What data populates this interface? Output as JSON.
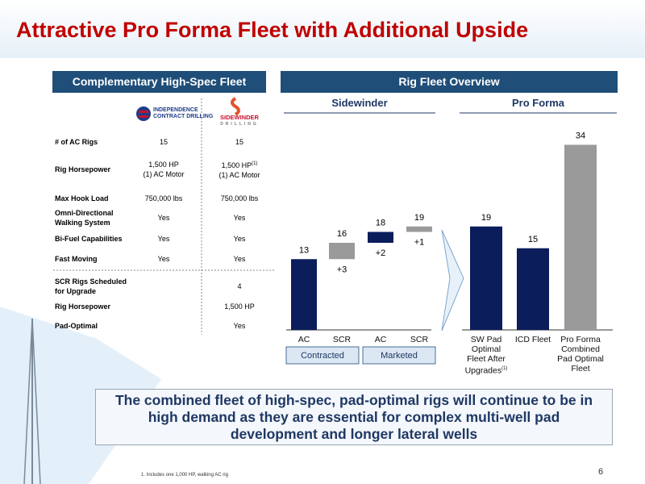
{
  "header": {
    "title": "Attractive Pro Forma Fleet with Additional Upside"
  },
  "table": {
    "title": "Complementary High-Spec Fleet",
    "logos": [
      [
        "INDEPENDENCE",
        "CONTRACT DRILLING"
      ],
      [
        "SIDEWINDER",
        "DRILLING"
      ]
    ],
    "horsepower_note": "(1)",
    "rows": [
      [
        "# of AC Rigs",
        "15",
        "15"
      ],
      [
        "Rig Horsepower",
        [
          "1,500 HP",
          "(1) AC Motor"
        ],
        [
          "1,500 HP",
          "(1) AC Motor"
        ]
      ],
      [
        "Max Hook Load",
        "750,000 lbs",
        "750,000 lbs"
      ],
      [
        [
          "Omni-Directional",
          "Walking System"
        ],
        "Yes",
        "Yes"
      ],
      [
        "Bi-Fuel Capabilities",
        "Yes",
        "Yes"
      ],
      [
        "Fast Moving",
        "Yes",
        "Yes"
      ],
      [
        [
          "SCR Rigs Scheduled",
          "for Upgrade"
        ],
        null,
        "4"
      ],
      [
        "Rig Horsepower",
        null,
        "1,500 HP"
      ],
      [
        "Pad-Optimal",
        null,
        "Yes"
      ]
    ]
  },
  "chart_data": {
    "type": "waterfall",
    "title": "Rig Fleet Overview",
    "panels": [
      "Sidewinder",
      "Pro Forma"
    ],
    "groups": [
      "Contracted",
      "Marketed"
    ],
    "categories": [
      "AC",
      "SCR",
      "AC",
      "SCR",
      "SW Pad Optimal Fleet After Upgrades",
      "ICD Fleet",
      "Pro Forma Combined Pad Optimal Fleet"
    ],
    "category_notes": [
      null,
      null,
      null,
      null,
      "(1)",
      null,
      null
    ],
    "measures": [
      "absolute",
      "relative",
      "relative",
      "relative",
      "absolute",
      "absolute",
      "absolute"
    ],
    "values": [
      13,
      3,
      2,
      1,
      19,
      15,
      34
    ],
    "value_labels": [
      "13",
      "+3",
      "+2",
      "+1",
      "19",
      "15",
      "34"
    ],
    "total_labels": [
      null,
      "16",
      "18",
      "19",
      null,
      null,
      null
    ],
    "colors": [
      "#0c1d5c",
      "#9a9a9a",
      "#0c1d5c",
      "#9a9a9a",
      "#0c1d5c",
      "#0c1d5c",
      "#9a9a9a"
    ]
  },
  "callout": "The combined fleet of high-spec, pad-optimal rigs will continue to be in high demand as they are essential for complex multi-well pad development and longer lateral wells",
  "footnote": "1.  Includes one 1,000 HP, walking AC rig",
  "page_number": "6"
}
